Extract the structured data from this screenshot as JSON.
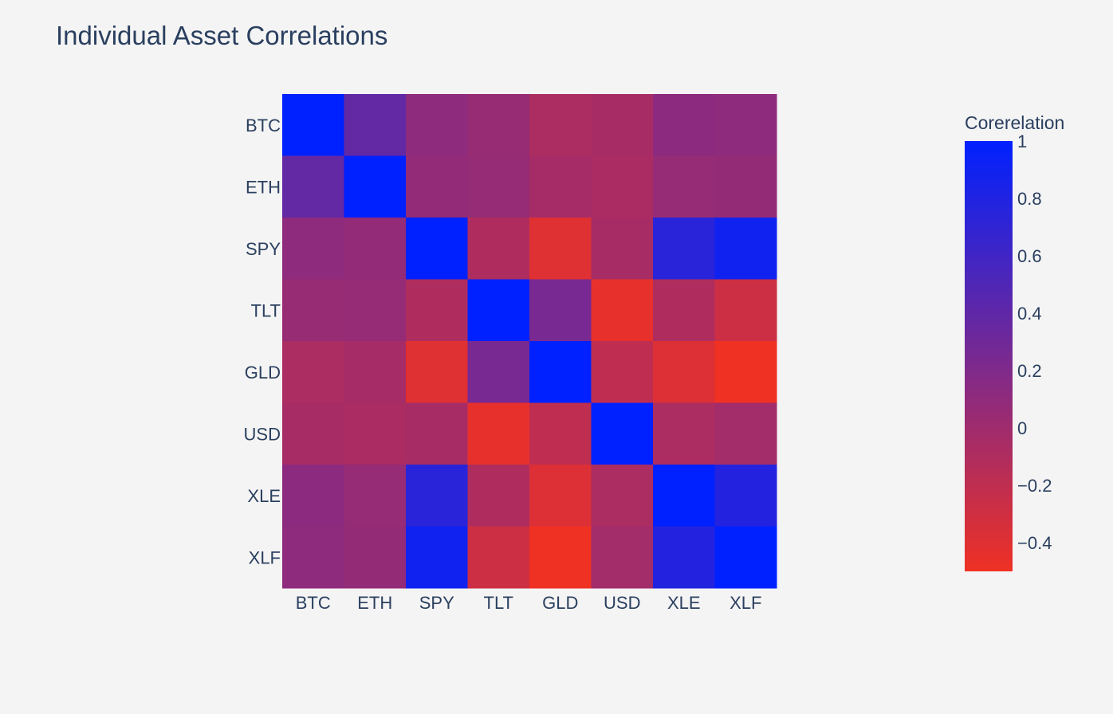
{
  "chart_data": {
    "type": "heatmap",
    "title": "Individual Asset Correlations",
    "x": [
      "BTC",
      "ETH",
      "SPY",
      "TLT",
      "GLD",
      "USD",
      "XLE",
      "XLF"
    ],
    "y": [
      "BTC",
      "ETH",
      "SPY",
      "TLT",
      "GLD",
      "USD",
      "XLE",
      "XLF"
    ],
    "z": [
      [
        1.0,
        0.38,
        0.1,
        0.05,
        -0.08,
        -0.05,
        0.12,
        0.1
      ],
      [
        0.38,
        1.0,
        0.08,
        0.06,
        -0.04,
        -0.07,
        0.06,
        0.07
      ],
      [
        0.1,
        0.08,
        1.0,
        -0.1,
        -0.4,
        -0.05,
        0.74,
        0.9
      ],
      [
        0.05,
        0.06,
        -0.1,
        1.0,
        0.25,
        -0.45,
        -0.1,
        -0.28
      ],
      [
        -0.08,
        -0.04,
        -0.4,
        0.25,
        1.0,
        -0.2,
        -0.38,
        -0.5
      ],
      [
        -0.05,
        -0.07,
        -0.05,
        -0.45,
        -0.2,
        1.0,
        -0.08,
        -0.02
      ],
      [
        0.12,
        0.06,
        0.74,
        -0.1,
        -0.38,
        -0.08,
        1.0,
        0.78
      ],
      [
        0.1,
        0.07,
        0.9,
        -0.28,
        -0.5,
        -0.02,
        0.78,
        1.0
      ]
    ],
    "zmin": -0.5,
    "zmax": 1.0,
    "colorscale": [
      [
        0,
        "#ef3124"
      ],
      [
        1,
        "#0021ff"
      ]
    ],
    "colorbar": {
      "title": "Corerelation",
      "ticks": [
        1,
        0.8,
        0.6,
        0.4,
        0.2,
        0,
        -0.2,
        -0.4
      ],
      "tick_labels": [
        "1",
        "0.8",
        "0.6",
        "0.4",
        "0.2",
        "0",
        "−0.2",
        "−0.4"
      ]
    }
  }
}
